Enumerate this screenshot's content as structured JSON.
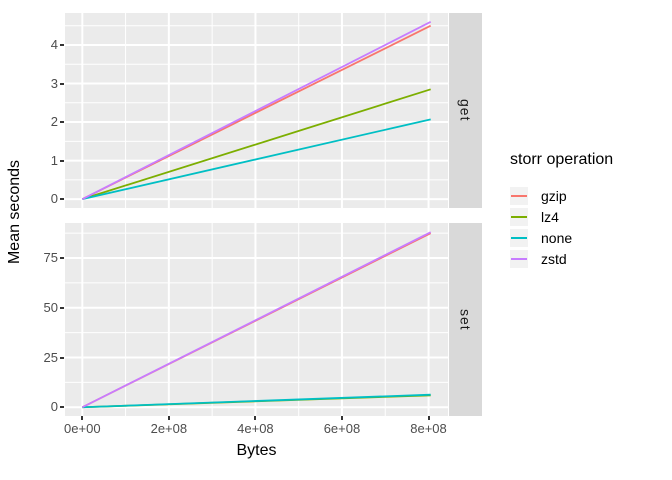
{
  "colors": {
    "panel_bg": "#EBEBEB",
    "strip_bg": "#D9D9D9",
    "grid": "#FFFFFF",
    "axis_text": "#4D4D4D",
    "tick_mark": "#333333",
    "legend_key_bg": "#F2F2F2"
  },
  "chart_data": {
    "type": "line",
    "title": "",
    "xlabel": "Bytes",
    "ylabel": "Mean seconds",
    "legend_title": "storr operation",
    "legend_position": "right",
    "grid": true,
    "x_tick_labels": [
      "0e+00",
      "2e+08",
      "4e+08",
      "6e+08",
      "8e+08"
    ],
    "x_tick_values": [
      0,
      200000000,
      400000000,
      600000000,
      800000000
    ],
    "x_minor_values": [
      100000000,
      300000000,
      500000000,
      700000000
    ],
    "xlim": [
      -40000000,
      845000000
    ],
    "legend_items": [
      {
        "label": "gzip",
        "color": "#F8766D"
      },
      {
        "label": "lz4",
        "color": "#7CAE00"
      },
      {
        "label": "none",
        "color": "#00BFC4"
      },
      {
        "label": "zstd",
        "color": "#C77CFF"
      }
    ],
    "facets": [
      {
        "name": "get",
        "y_tick_labels": [
          "0",
          "1",
          "2",
          "3",
          "4"
        ],
        "y_tick_values": [
          0,
          1,
          2,
          3,
          4
        ],
        "y_minor_values": [
          0.5,
          1.5,
          2.5,
          3.5,
          4.5
        ],
        "ylim": [
          -0.23,
          4.83
        ],
        "series": [
          {
            "name": "gzip",
            "color": "#F8766D",
            "x": [
              0,
              805000000
            ],
            "y": [
              0,
              4.5
            ]
          },
          {
            "name": "lz4",
            "color": "#7CAE00",
            "x": [
              0,
              805000000
            ],
            "y": [
              0,
              2.85
            ]
          },
          {
            "name": "none",
            "color": "#00BFC4",
            "x": [
              0,
              805000000
            ],
            "y": [
              0,
              2.07
            ]
          },
          {
            "name": "zstd",
            "color": "#C77CFF",
            "x": [
              0,
              805000000
            ],
            "y": [
              0,
              4.6
            ]
          }
        ]
      },
      {
        "name": "set",
        "y_tick_labels": [
          "0",
          "25",
          "50",
          "75"
        ],
        "y_tick_values": [
          0,
          25,
          50,
          75
        ],
        "y_minor_values": [
          12.5,
          37.5,
          62.5,
          87.5
        ],
        "ylim": [
          -4.4,
          92.6
        ],
        "series": [
          {
            "name": "gzip",
            "color": "#F8766D",
            "x": [
              0,
              805000000
            ],
            "y": [
              0,
              87.5
            ]
          },
          {
            "name": "lz4",
            "color": "#7CAE00",
            "x": [
              0,
              805000000
            ],
            "y": [
              0,
              6.0
            ]
          },
          {
            "name": "none",
            "color": "#00BFC4",
            "x": [
              0,
              805000000
            ],
            "y": [
              0,
              6.3
            ]
          },
          {
            "name": "zstd",
            "color": "#C77CFF",
            "x": [
              0,
              805000000
            ],
            "y": [
              0,
              88
            ]
          }
        ]
      }
    ]
  }
}
